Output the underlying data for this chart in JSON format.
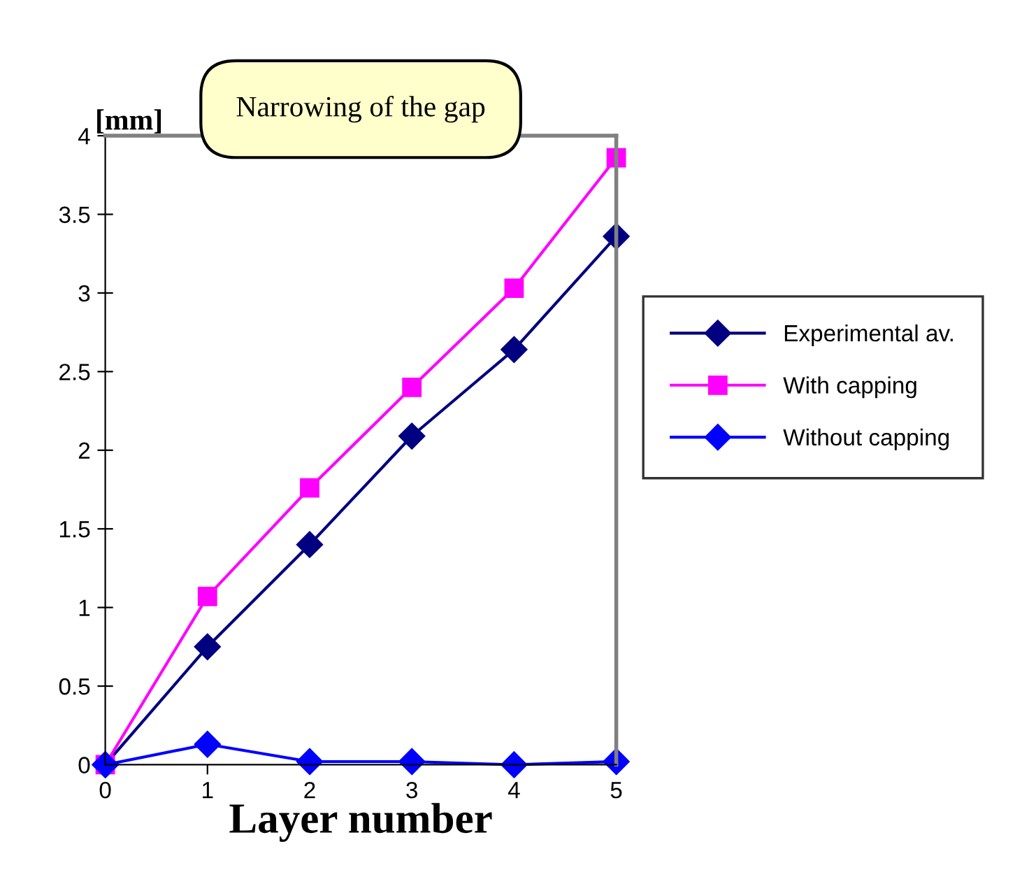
{
  "chart_data": {
    "type": "line",
    "title": "Narrowing of the gap",
    "xlabel": "Layer number",
    "ylabel": "[mm]",
    "x": [
      0,
      1,
      2,
      3,
      4,
      5
    ],
    "series": [
      {
        "name": "Experimental av.",
        "color": "#000080",
        "marker": "diamond",
        "values": [
          0,
          0.75,
          1.4,
          2.09,
          2.64,
          3.36
        ]
      },
      {
        "name": "With capping",
        "color": "#ff00ff",
        "marker": "square",
        "values": [
          0,
          1.07,
          1.76,
          2.4,
          3.03,
          3.86
        ]
      },
      {
        "name": "Without capping",
        "color": "#0000ff",
        "marker": "diamond",
        "values": [
          0,
          0.13,
          0.02,
          0.02,
          0,
          0.02
        ]
      }
    ],
    "xlim": [
      0,
      5
    ],
    "ylim": [
      0,
      4
    ],
    "xticks": [
      0,
      1,
      2,
      3,
      4,
      5
    ],
    "yticks": [
      0,
      0.5,
      1,
      1.5,
      2,
      2.5,
      3,
      3.5,
      4
    ],
    "grid": false,
    "legend": "right",
    "line_style": "solid"
  }
}
